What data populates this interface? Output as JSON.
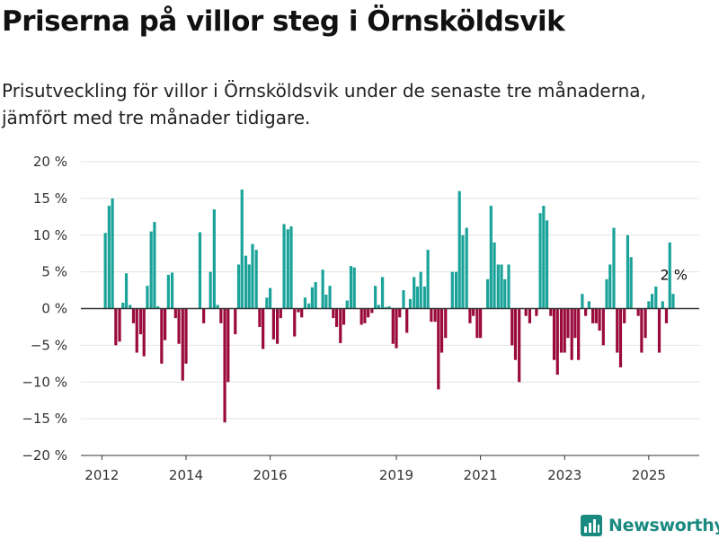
{
  "title": "Priserna på villor steg i Örnsköldsvik",
  "subtitle": "Prisutveckling för villor i Örnsköldsvik under de senaste tre månaderna, jämfört med tre månader tidigare.",
  "brand": {
    "name": "Newsworthy",
    "icon": "newsworthy-logo-icon",
    "color": "#1a8a80"
  },
  "colors": {
    "positive": "#1ba39a",
    "negative": "#9a0a3c",
    "grid": "#e3e3e3",
    "zero_line": "#333333"
  },
  "chart_data": {
    "type": "bar",
    "title": "",
    "xlabel": "",
    "ylabel": "",
    "ylim": [
      -20,
      20
    ],
    "y_ticks": [
      -20,
      -15,
      -10,
      -5,
      0,
      5,
      10,
      15,
      20
    ],
    "y_tick_labels": [
      "−20 %",
      "−15 %",
      "−10 %",
      "−5 %",
      "0 %",
      "5 %",
      "10 %",
      "15 %",
      "20 %"
    ],
    "x_tick_labels": [
      "2012",
      "2014",
      "2016",
      "2019",
      "2021",
      "2023",
      "2025"
    ],
    "x_tick_positions": [
      2012,
      2014,
      2016,
      2019,
      2021,
      2023,
      2025
    ],
    "xlim": [
      2011.5,
      2026.2
    ],
    "grid": true,
    "last_value_label": "2 %",
    "series": [
      {
        "values": [
          {
            "x": 2012.08,
            "y": 10.3
          },
          {
            "x": 2012.17,
            "y": 14.0
          },
          {
            "x": 2012.25,
            "y": 15.0
          },
          {
            "x": 2012.33,
            "y": -5.0
          },
          {
            "x": 2012.42,
            "y": -4.5
          },
          {
            "x": 2012.5,
            "y": 0.8
          },
          {
            "x": 2012.58,
            "y": 4.8
          },
          {
            "x": 2012.67,
            "y": 0.5
          },
          {
            "x": 2012.75,
            "y": -2.0
          },
          {
            "x": 2012.83,
            "y": -6.0
          },
          {
            "x": 2012.92,
            "y": -3.5
          },
          {
            "x": 2013.0,
            "y": -6.5
          },
          {
            "x": 2013.08,
            "y": 3.1
          },
          {
            "x": 2013.17,
            "y": 10.5
          },
          {
            "x": 2013.25,
            "y": 11.8
          },
          {
            "x": 2013.33,
            "y": 0.3
          },
          {
            "x": 2013.42,
            "y": -7.5
          },
          {
            "x": 2013.5,
            "y": -4.3
          },
          {
            "x": 2013.58,
            "y": 4.6
          },
          {
            "x": 2013.67,
            "y": 4.9
          },
          {
            "x": 2013.75,
            "y": -1.3
          },
          {
            "x": 2013.83,
            "y": -4.8
          },
          {
            "x": 2013.92,
            "y": -9.8
          },
          {
            "x": 2014.0,
            "y": -7.5
          },
          {
            "x": 2014.08,
            "y": 0.0
          },
          {
            "x": 2014.17,
            "y": 0.0
          },
          {
            "x": 2014.25,
            "y": 0.0
          },
          {
            "x": 2014.33,
            "y": 10.4
          },
          {
            "x": 2014.42,
            "y": -2.0
          },
          {
            "x": 2014.5,
            "y": 0.0
          },
          {
            "x": 2014.58,
            "y": 5.0
          },
          {
            "x": 2014.67,
            "y": 13.5
          },
          {
            "x": 2014.75,
            "y": 0.5
          },
          {
            "x": 2014.83,
            "y": -2.0
          },
          {
            "x": 2014.92,
            "y": -15.5
          },
          {
            "x": 2015.0,
            "y": -10.0
          },
          {
            "x": 2015.08,
            "y": 0.0
          },
          {
            "x": 2015.17,
            "y": -3.5
          },
          {
            "x": 2015.25,
            "y": 6.0
          },
          {
            "x": 2015.33,
            "y": 16.2
          },
          {
            "x": 2015.42,
            "y": 7.2
          },
          {
            "x": 2015.5,
            "y": 6.0
          },
          {
            "x": 2015.58,
            "y": 8.8
          },
          {
            "x": 2015.67,
            "y": 8.0
          },
          {
            "x": 2015.75,
            "y": -2.5
          },
          {
            "x": 2015.83,
            "y": -5.5
          },
          {
            "x": 2015.92,
            "y": 1.5
          },
          {
            "x": 2016.0,
            "y": 2.8
          },
          {
            "x": 2016.08,
            "y": -4.2
          },
          {
            "x": 2016.17,
            "y": -4.8
          },
          {
            "x": 2016.25,
            "y": -1.3
          },
          {
            "x": 2016.33,
            "y": 11.5
          },
          {
            "x": 2016.42,
            "y": 10.8
          },
          {
            "x": 2016.5,
            "y": 11.2
          },
          {
            "x": 2016.58,
            "y": -3.8
          },
          {
            "x": 2016.67,
            "y": -0.5
          },
          {
            "x": 2016.75,
            "y": -1.2
          },
          {
            "x": 2016.83,
            "y": 1.5
          },
          {
            "x": 2016.92,
            "y": 0.7
          },
          {
            "x": 2017.0,
            "y": 2.9
          },
          {
            "x": 2017.08,
            "y": 3.6
          },
          {
            "x": 2017.17,
            "y": 0.0
          },
          {
            "x": 2017.25,
            "y": 5.3
          },
          {
            "x": 2017.33,
            "y": 1.9
          },
          {
            "x": 2017.42,
            "y": 3.1
          },
          {
            "x": 2017.5,
            "y": -1.3
          },
          {
            "x": 2017.58,
            "y": -2.5
          },
          {
            "x": 2017.67,
            "y": -4.7
          },
          {
            "x": 2017.75,
            "y": -2.2
          },
          {
            "x": 2017.83,
            "y": 1.1
          },
          {
            "x": 2017.92,
            "y": 5.8
          },
          {
            "x": 2018.0,
            "y": 5.6
          },
          {
            "x": 2018.08,
            "y": 0.0
          },
          {
            "x": 2018.17,
            "y": -2.2
          },
          {
            "x": 2018.25,
            "y": -2.0
          },
          {
            "x": 2018.33,
            "y": -1.2
          },
          {
            "x": 2018.42,
            "y": -0.6
          },
          {
            "x": 2018.5,
            "y": 3.1
          },
          {
            "x": 2018.58,
            "y": 0.5
          },
          {
            "x": 2018.67,
            "y": 4.3
          },
          {
            "x": 2018.75,
            "y": 0.2
          },
          {
            "x": 2018.83,
            "y": 0.3
          },
          {
            "x": 2018.92,
            "y": -4.8
          },
          {
            "x": 2019.0,
            "y": -5.4
          },
          {
            "x": 2019.08,
            "y": -1.2
          },
          {
            "x": 2019.17,
            "y": 2.5
          },
          {
            "x": 2019.25,
            "y": -3.3
          },
          {
            "x": 2019.33,
            "y": 1.3
          },
          {
            "x": 2019.42,
            "y": 4.3
          },
          {
            "x": 2019.5,
            "y": 3.0
          },
          {
            "x": 2019.58,
            "y": 5.0
          },
          {
            "x": 2019.67,
            "y": 3.0
          },
          {
            "x": 2019.75,
            "y": 8.0
          },
          {
            "x": 2019.83,
            "y": -1.8
          },
          {
            "x": 2019.92,
            "y": -1.8
          },
          {
            "x": 2020.0,
            "y": -11.0
          },
          {
            "x": 2020.08,
            "y": -6.0
          },
          {
            "x": 2020.17,
            "y": -4.0
          },
          {
            "x": 2020.25,
            "y": 0.0
          },
          {
            "x": 2020.33,
            "y": 5.0
          },
          {
            "x": 2020.42,
            "y": 5.0
          },
          {
            "x": 2020.5,
            "y": 16.0
          },
          {
            "x": 2020.58,
            "y": 10.0
          },
          {
            "x": 2020.67,
            "y": 11.0
          },
          {
            "x": 2020.75,
            "y": -2.0
          },
          {
            "x": 2020.83,
            "y": -1.0
          },
          {
            "x": 2020.92,
            "y": -4.0
          },
          {
            "x": 2021.0,
            "y": -4.0
          },
          {
            "x": 2021.08,
            "y": 0.0
          },
          {
            "x": 2021.17,
            "y": 4.0
          },
          {
            "x": 2021.25,
            "y": 14.0
          },
          {
            "x": 2021.33,
            "y": 9.0
          },
          {
            "x": 2021.42,
            "y": 6.0
          },
          {
            "x": 2021.5,
            "y": 6.0
          },
          {
            "x": 2021.58,
            "y": 4.0
          },
          {
            "x": 2021.67,
            "y": 6.0
          },
          {
            "x": 2021.75,
            "y": -5.0
          },
          {
            "x": 2021.83,
            "y": -7.0
          },
          {
            "x": 2021.92,
            "y": -10.0
          },
          {
            "x": 2022.0,
            "y": 0.0
          },
          {
            "x": 2022.08,
            "y": -1.0
          },
          {
            "x": 2022.17,
            "y": -2.0
          },
          {
            "x": 2022.25,
            "y": 0.0
          },
          {
            "x": 2022.33,
            "y": -1.0
          },
          {
            "x": 2022.42,
            "y": 13.0
          },
          {
            "x": 2022.5,
            "y": 14.0
          },
          {
            "x": 2022.58,
            "y": 12.0
          },
          {
            "x": 2022.67,
            "y": -1.0
          },
          {
            "x": 2022.75,
            "y": -7.0
          },
          {
            "x": 2022.83,
            "y": -9.0
          },
          {
            "x": 2022.92,
            "y": -6.0
          },
          {
            "x": 2023.0,
            "y": -6.0
          },
          {
            "x": 2023.08,
            "y": -4.0
          },
          {
            "x": 2023.17,
            "y": -7.0
          },
          {
            "x": 2023.25,
            "y": -4.0
          },
          {
            "x": 2023.33,
            "y": -7.0
          },
          {
            "x": 2023.42,
            "y": 2.0
          },
          {
            "x": 2023.5,
            "y": -1.0
          },
          {
            "x": 2023.58,
            "y": 1.0
          },
          {
            "x": 2023.67,
            "y": -2.0
          },
          {
            "x": 2023.75,
            "y": -2.0
          },
          {
            "x": 2023.83,
            "y": -3.0
          },
          {
            "x": 2023.92,
            "y": -5.0
          },
          {
            "x": 2024.0,
            "y": 4.0
          },
          {
            "x": 2024.08,
            "y": 6.0
          },
          {
            "x": 2024.17,
            "y": 11.0
          },
          {
            "x": 2024.25,
            "y": -6.0
          },
          {
            "x": 2024.33,
            "y": -8.0
          },
          {
            "x": 2024.42,
            "y": -2.0
          },
          {
            "x": 2024.5,
            "y": 10.0
          },
          {
            "x": 2024.58,
            "y": 7.0
          },
          {
            "x": 2024.67,
            "y": 0.0
          },
          {
            "x": 2024.75,
            "y": -1.0
          },
          {
            "x": 2024.83,
            "y": -6.0
          },
          {
            "x": 2024.92,
            "y": -4.0
          },
          {
            "x": 2025.0,
            "y": 1.0
          },
          {
            "x": 2025.08,
            "y": 2.0
          },
          {
            "x": 2025.17,
            "y": 3.0
          },
          {
            "x": 2025.25,
            "y": -6.0
          },
          {
            "x": 2025.33,
            "y": 1.0
          },
          {
            "x": 2025.42,
            "y": -2.0
          },
          {
            "x": 2025.5,
            "y": 9.0
          },
          {
            "x": 2025.58,
            "y": 2.0
          }
        ]
      }
    ]
  }
}
